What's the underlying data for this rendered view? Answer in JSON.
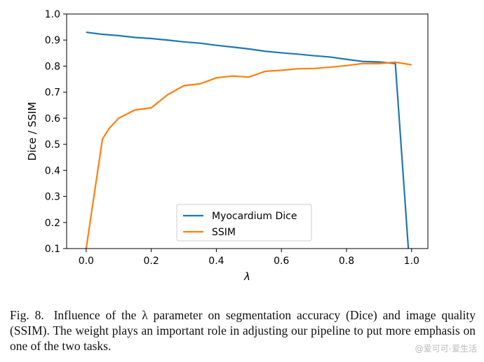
{
  "chart_data": {
    "type": "line",
    "xlabel": "λ",
    "ylabel": "Dice / SSIM",
    "xlim": [
      -0.06,
      1.05
    ],
    "ylim": [
      0.1,
      1.0
    ],
    "xticks": [
      "0.0",
      "0.2",
      "0.4",
      "0.6",
      "0.8",
      "1.0"
    ],
    "xtick_values": [
      0.0,
      0.2,
      0.4,
      0.6,
      0.8,
      1.0
    ],
    "yticks": [
      "0.1",
      "0.2",
      "0.3",
      "0.4",
      "0.5",
      "0.6",
      "0.7",
      "0.8",
      "0.9",
      "1.0"
    ],
    "ytick_values": [
      0.1,
      0.2,
      0.3,
      0.4,
      0.5,
      0.6,
      0.7,
      0.8,
      0.9,
      1.0
    ],
    "legend_position": "lower-center",
    "series": [
      {
        "name": "Myocardium Dice",
        "color": "#1f77b4",
        "x": [
          0.0,
          0.05,
          0.1,
          0.15,
          0.2,
          0.25,
          0.3,
          0.35,
          0.4,
          0.45,
          0.5,
          0.55,
          0.6,
          0.65,
          0.7,
          0.75,
          0.8,
          0.85,
          0.9,
          0.95,
          0.99
        ],
        "y": [
          0.93,
          0.922,
          0.917,
          0.91,
          0.906,
          0.9,
          0.893,
          0.888,
          0.88,
          0.873,
          0.866,
          0.857,
          0.851,
          0.846,
          0.84,
          0.835,
          0.826,
          0.818,
          0.816,
          0.81,
          0.1
        ]
      },
      {
        "name": "SSIM",
        "color": "#ff7f0e",
        "x": [
          0.0,
          0.05,
          0.07,
          0.1,
          0.15,
          0.2,
          0.25,
          0.3,
          0.35,
          0.4,
          0.45,
          0.5,
          0.55,
          0.6,
          0.65,
          0.7,
          0.75,
          0.8,
          0.85,
          0.9,
          0.95,
          1.0
        ],
        "y": [
          0.1,
          0.52,
          0.56,
          0.6,
          0.632,
          0.64,
          0.69,
          0.725,
          0.732,
          0.755,
          0.762,
          0.758,
          0.78,
          0.784,
          0.79,
          0.791,
          0.796,
          0.802,
          0.81,
          0.81,
          0.815,
          0.805
        ]
      }
    ]
  },
  "caption": {
    "label": "Fig. 8.",
    "text": "Influence of the λ parameter on segmentation accuracy (Dice) and image quality (SSIM). The weight plays an important role in adjusting our pipeline to put more emphasis on one of the two tasks."
  },
  "watermark": "@爱可可-爱生活"
}
